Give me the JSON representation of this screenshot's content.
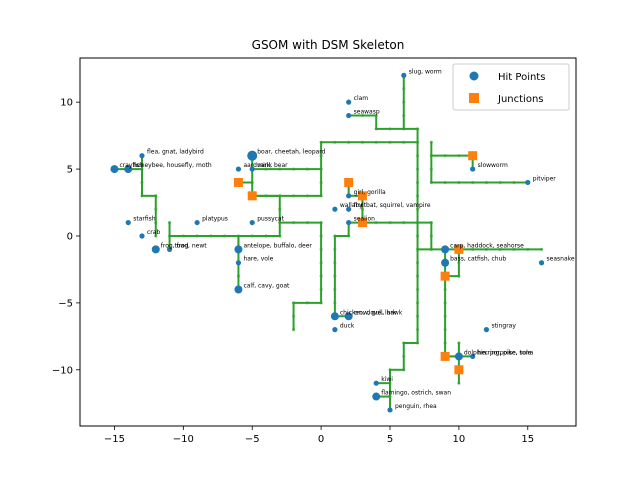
{
  "chart_data": {
    "type": "scatter",
    "title": "GSOM with DSM Skeleton",
    "xlim": [
      -17.5,
      18.5
    ],
    "ylim": [
      -14.2,
      13.3
    ],
    "xticks": [
      -15,
      -10,
      -5,
      0,
      5,
      10,
      15
    ],
    "yticks": [
      -10,
      -5,
      0,
      5,
      10
    ],
    "xtick_labels": [
      "−15",
      "−10",
      "−5",
      "0",
      "5",
      "10",
      "15"
    ],
    "ytick_labels": [
      "−10",
      "−5",
      "0",
      "5",
      "10"
    ],
    "grid": false,
    "legend_position": "top-right",
    "colors": {
      "hit": "#1f77b4",
      "junction": "#ff7f0e",
      "skeleton": "#2ca02c",
      "node": "#90d090"
    },
    "series": [
      {
        "name": "Hit Points",
        "marker": "circle",
        "points": [
          {
            "x": 6,
            "y": 12,
            "label": "slug, worm",
            "size": 1
          },
          {
            "x": 2,
            "y": 10,
            "label": "clam",
            "size": 1
          },
          {
            "x": 2,
            "y": 9,
            "label": "seawasp",
            "size": 1
          },
          {
            "x": -13,
            "y": 6,
            "label": "flea, gnat, ladybird",
            "size": 1
          },
          {
            "x": -5,
            "y": 6,
            "label": "boar, cheetah, leopard",
            "size": 3
          },
          {
            "x": -15,
            "y": 5,
            "label": "crayfish",
            "size": 2
          },
          {
            "x": -14,
            "y": 5,
            "label": "honeybee, housefly, moth",
            "size": 2
          },
          {
            "x": -6,
            "y": 5,
            "label": "aardvark, bear",
            "size": 1
          },
          {
            "x": -5,
            "y": 5,
            "label": "mink",
            "size": 1
          },
          {
            "x": 11,
            "y": 5,
            "label": "slowworm",
            "size": 1
          },
          {
            "x": 15,
            "y": 4,
            "label": "pitviper",
            "size": 1
          },
          {
            "x": 2,
            "y": 3,
            "label": "girl, gorilla",
            "size": 1
          },
          {
            "x": 1,
            "y": 2,
            "label": "wallaby",
            "size": 1
          },
          {
            "x": 2,
            "y": 2,
            "label": "fruitbat, squirrel, vampire",
            "size": 1
          },
          {
            "x": -14,
            "y": 1,
            "label": "starfish",
            "size": 1
          },
          {
            "x": -9,
            "y": 1,
            "label": "platypus",
            "size": 1
          },
          {
            "x": -5,
            "y": 1,
            "label": "pussycat",
            "size": 1
          },
          {
            "x": 2,
            "y": 1,
            "label": "sealion",
            "size": 1
          },
          {
            "x": -13,
            "y": 0,
            "label": "crab",
            "size": 1
          },
          {
            "x": -12,
            "y": -1,
            "label": "frog, frog",
            "size": 2
          },
          {
            "x": -11,
            "y": -1,
            "label": "toad, newt",
            "size": 1
          },
          {
            "x": -6,
            "y": -1,
            "label": "antelope, buffalo, deer",
            "size": 2
          },
          {
            "x": 9,
            "y": -1,
            "label": "carp, haddock, seahorse",
            "size": 2
          },
          {
            "x": -6,
            "y": -2,
            "label": "hare, vole",
            "size": 1
          },
          {
            "x": 9,
            "y": -2,
            "label": "bass, catfish, chub",
            "size": 2
          },
          {
            "x": 16,
            "y": -2,
            "label": "seasnake",
            "size": 1
          },
          {
            "x": -6,
            "y": -4,
            "label": "calf, cavy, goat",
            "size": 2
          },
          {
            "x": 1,
            "y": -6,
            "label": "chicken, dove, lark",
            "size": 2
          },
          {
            "x": 2,
            "y": -6,
            "label": "crow, gull, hawk",
            "size": 2
          },
          {
            "x": 1,
            "y": -7,
            "label": "duck",
            "size": 1
          },
          {
            "x": 12,
            "y": -7,
            "label": "stingray",
            "size": 1
          },
          {
            "x": 10,
            "y": -9,
            "label": "dolphin, porpoise, tuna",
            "size": 2
          },
          {
            "x": 11,
            "y": -9,
            "label": "herring, pike, sole",
            "size": 1
          },
          {
            "x": 4,
            "y": -11,
            "label": "kiwi",
            "size": 1
          },
          {
            "x": 4,
            "y": -12,
            "label": "flamingo, ostrich, swan",
            "size": 2
          },
          {
            "x": 5,
            "y": -13,
            "label": "penguin, rhea",
            "size": 1
          }
        ]
      },
      {
        "name": "Junctions",
        "marker": "square",
        "points": [
          {
            "x": -6,
            "y": 4
          },
          {
            "x": -5,
            "y": 3
          },
          {
            "x": 2,
            "y": 4
          },
          {
            "x": 3,
            "y": 3
          },
          {
            "x": 3,
            "y": 1
          },
          {
            "x": 11,
            "y": 6
          },
          {
            "x": 10,
            "y": -1
          },
          {
            "x": 9,
            "y": -3
          },
          {
            "x": 9,
            "y": -9
          },
          {
            "x": 10,
            "y": -10
          }
        ]
      }
    ],
    "skeleton_segments": [
      [
        [
          6,
          12
        ],
        [
          6,
          8
        ]
      ],
      [
        [
          6,
          8
        ],
        [
          7,
          8
        ]
      ],
      [
        [
          7,
          8
        ],
        [
          7,
          -1
        ]
      ],
      [
        [
          2,
          9
        ],
        [
          4,
          9
        ]
      ],
      [
        [
          4,
          9
        ],
        [
          4,
          8
        ]
      ],
      [
        [
          4,
          8
        ],
        [
          6,
          8
        ]
      ],
      [
        [
          0,
          7
        ],
        [
          7,
          7
        ]
      ],
      [
        [
          0,
          7
        ],
        [
          0,
          5
        ]
      ],
      [
        [
          -5,
          5
        ],
        [
          0,
          5
        ]
      ],
      [
        [
          0,
          5
        ],
        [
          0,
          3
        ]
      ],
      [
        [
          -5,
          3
        ],
        [
          0,
          3
        ]
      ],
      [
        [
          -5,
          6
        ],
        [
          -5,
          3
        ]
      ],
      [
        [
          -5,
          3
        ],
        [
          -3,
          3
        ]
      ],
      [
        [
          -3,
          3
        ],
        [
          -3,
          1
        ]
      ],
      [
        [
          -6,
          4
        ],
        [
          -5,
          4
        ]
      ],
      [
        [
          2,
          4
        ],
        [
          2,
          3
        ]
      ],
      [
        [
          2,
          3
        ],
        [
          3,
          3
        ]
      ],
      [
        [
          3,
          3
        ],
        [
          3,
          1
        ]
      ],
      [
        [
          -3,
          1
        ],
        [
          0,
          1
        ]
      ],
      [
        [
          0,
          1
        ],
        [
          0,
          -5
        ]
      ],
      [
        [
          -2,
          -5
        ],
        [
          0,
          -5
        ]
      ],
      [
        [
          -2,
          -5
        ],
        [
          -2,
          -7
        ]
      ],
      [
        [
          -3,
          1
        ],
        [
          -3,
          0
        ]
      ],
      [
        [
          -11,
          0
        ],
        [
          -3,
          0
        ]
      ],
      [
        [
          -12,
          1
        ],
        [
          -12,
          0
        ]
      ],
      [
        [
          -12,
          3
        ],
        [
          -12,
          1
        ]
      ],
      [
        [
          -13,
          3
        ],
        [
          -12,
          3
        ]
      ],
      [
        [
          -13,
          6
        ],
        [
          -13,
          3
        ]
      ],
      [
        [
          -15,
          5
        ],
        [
          -13,
          5
        ]
      ],
      [
        [
          -11,
          0
        ],
        [
          -11,
          -1
        ]
      ],
      [
        [
          -11,
          1
        ],
        [
          -11,
          0
        ]
      ],
      [
        [
          -6,
          0
        ],
        [
          -6,
          -4
        ]
      ],
      [
        [
          -6,
          -1
        ],
        [
          -6,
          0
        ]
      ],
      [
        [
          2,
          1
        ],
        [
          7,
          1
        ]
      ],
      [
        [
          2,
          1
        ],
        [
          2,
          0
        ]
      ],
      [
        [
          1,
          0
        ],
        [
          2,
          0
        ]
      ],
      [
        [
          1,
          0
        ],
        [
          1,
          -6
        ]
      ],
      [
        [
          1,
          -6
        ],
        [
          2,
          -6
        ]
      ],
      [
        [
          7,
          1
        ],
        [
          8,
          1
        ]
      ],
      [
        [
          8,
          1
        ],
        [
          8,
          -1
        ]
      ],
      [
        [
          7,
          -1
        ],
        [
          10,
          -1
        ]
      ],
      [
        [
          10,
          -1
        ],
        [
          16,
          -1
        ]
      ],
      [
        [
          9,
          -1
        ],
        [
          9,
          -3
        ]
      ],
      [
        [
          9,
          -3
        ],
        [
          9,
          -9
        ]
      ],
      [
        [
          9,
          -9
        ],
        [
          11,
          -9
        ]
      ],
      [
        [
          10,
          -1
        ],
        [
          10,
          -3
        ]
      ],
      [
        [
          9,
          -3
        ],
        [
          10,
          -3
        ]
      ],
      [
        [
          10,
          -10
        ],
        [
          10,
          -8
        ]
      ],
      [
        [
          9,
          -9
        ],
        [
          10,
          -9
        ]
      ],
      [
        [
          10,
          -10
        ],
        [
          10,
          -11
        ]
      ],
      [
        [
          7,
          -1
        ],
        [
          7,
          -8
        ]
      ],
      [
        [
          6,
          -8
        ],
        [
          7,
          -8
        ]
      ],
      [
        [
          6,
          -8
        ],
        [
          6,
          -10
        ]
      ],
      [
        [
          5,
          -10
        ],
        [
          6,
          -10
        ]
      ],
      [
        [
          5,
          -10
        ],
        [
          5,
          -11
        ]
      ],
      [
        [
          4,
          -11
        ],
        [
          5,
          -11
        ]
      ],
      [
        [
          5,
          -11
        ],
        [
          5,
          -13
        ]
      ],
      [
        [
          4,
          -12
        ],
        [
          5,
          -12
        ]
      ],
      [
        [
          11,
          6
        ],
        [
          11,
          5
        ]
      ],
      [
        [
          8,
          6
        ],
        [
          11,
          6
        ]
      ],
      [
        [
          8,
          6
        ],
        [
          8,
          7
        ]
      ],
      [
        [
          8,
          4
        ],
        [
          15,
          4
        ]
      ],
      [
        [
          8,
          4
        ],
        [
          8,
          6
        ]
      ]
    ]
  }
}
